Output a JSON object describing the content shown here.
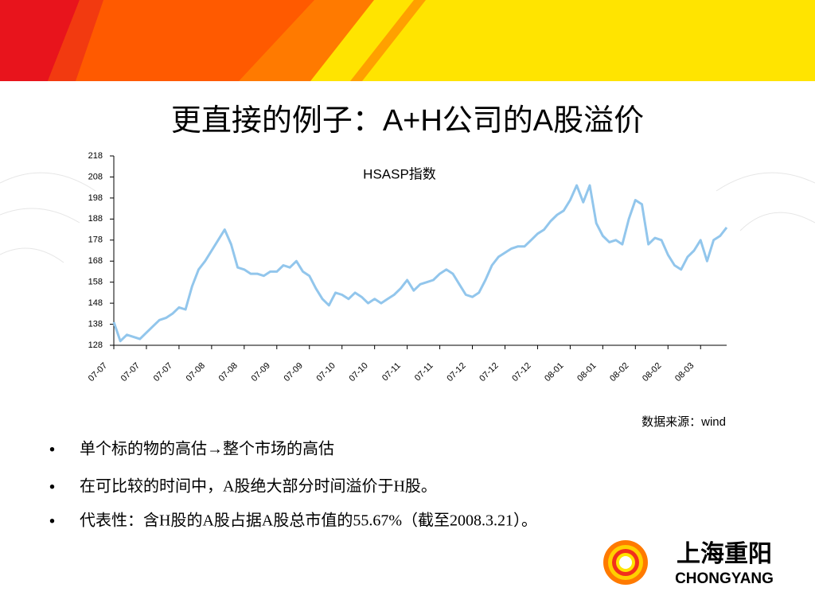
{
  "title": "更直接的例子：A+H公司的A股溢价",
  "chart_data": {
    "type": "line",
    "title": "HSASP指数",
    "color": "#92c6ec",
    "categories": [
      "07-07",
      null,
      null,
      null,
      null,
      "07-07",
      null,
      null,
      null,
      null,
      "07-07",
      null,
      null,
      null,
      null,
      "07-08",
      null,
      null,
      null,
      null,
      "07-08",
      null,
      null,
      null,
      null,
      "07-09",
      null,
      null,
      null,
      null,
      "07-09",
      null,
      null,
      null,
      null,
      "07-10",
      null,
      null,
      null,
      null,
      "07-10",
      null,
      null,
      null,
      null,
      "07-11",
      null,
      null,
      null,
      null,
      "07-11",
      null,
      null,
      null,
      null,
      "07-12",
      null,
      null,
      null,
      null,
      "07-12",
      null,
      null,
      null,
      null,
      "07-12",
      null,
      null,
      null,
      null,
      "08-01",
      null,
      null,
      null,
      null,
      "08-01",
      null,
      null,
      null,
      null,
      "08-02",
      null,
      null,
      null,
      null,
      "08-02",
      null,
      null,
      null,
      null,
      "08-03",
      null,
      null,
      null,
      null
    ],
    "values": [
      139,
      130,
      133,
      132,
      131,
      134,
      137,
      140,
      141,
      143,
      146,
      145,
      156,
      164,
      168,
      173,
      178,
      183,
      176,
      165,
      164,
      162,
      162,
      161,
      163,
      163,
      166,
      165,
      168,
      163,
      161,
      155,
      150,
      147,
      153,
      152,
      150,
      153,
      151,
      148,
      150,
      148,
      150,
      152,
      155,
      159,
      154,
      157,
      158,
      159,
      162,
      164,
      162,
      157,
      152,
      151,
      153,
      159,
      166,
      170,
      172,
      174,
      175,
      175,
      178,
      181,
      183,
      187,
      190,
      192,
      197,
      204,
      196,
      204,
      186,
      180,
      177,
      178,
      176,
      188,
      197,
      195,
      176,
      179,
      178,
      171,
      166,
      164,
      170,
      173,
      178,
      168,
      178,
      180,
      184
    ],
    "ylim": [
      128,
      218
    ],
    "yticks": [
      128,
      138,
      148,
      158,
      168,
      178,
      188,
      198,
      208,
      218
    ]
  },
  "source": "数据来源：wind",
  "bullets": [
    "单个标的物的高估→整个市场的高估",
    "在可比较的时间中，A股绝大部分时间溢价于H股。",
    "代表性：含H股的A股占据A股总市值的55.67%（截至2008.3.21）。"
  ],
  "logo": {
    "cn": "上海重阳",
    "en": "CHONGYANG"
  }
}
